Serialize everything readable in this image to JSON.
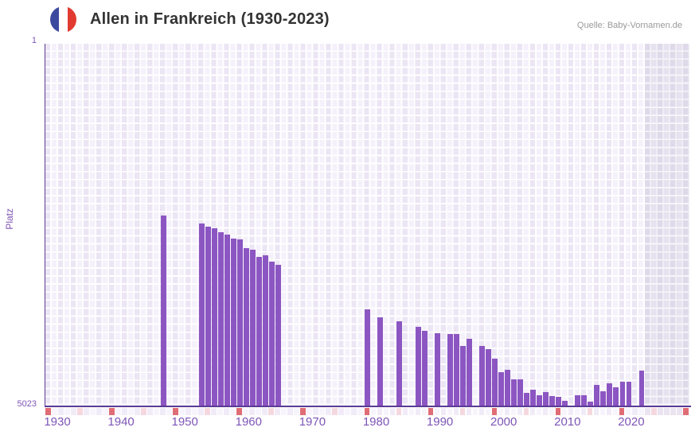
{
  "header": {
    "title": "Allen in Frankreich (1930-2023)",
    "flag_icon": "france-flag-circle-icon",
    "source": "Quelle: Baby-Vornamen.de"
  },
  "colors": {
    "bar": "#8c56c2",
    "axis_line": "#5b3b94",
    "axis_text": "#7d55b6",
    "title_text": "#333333",
    "source_text": "#999999",
    "decade_marker": "#df6d75",
    "half_decade_marker": "#f5d8df",
    "strip_cell": "#f1ebf8",
    "strip_cell_future": "#eae3f0",
    "grid_cell_dark": "#ebe5f4",
    "grid_cell_light": "#f5f1fb",
    "future_band": "#e2deec",
    "flag_blue": "#3b4a9f",
    "flag_white": "#ffffff",
    "flag_red": "#e23a30"
  },
  "chart_data": {
    "type": "bar",
    "title": "Allen in Frankreich (1930-2023)",
    "xlabel": "",
    "ylabel": "Platz",
    "y_axis": {
      "reversed": true,
      "min": 1,
      "max": 5023,
      "top_label": "1",
      "bottom_label": "5023"
    },
    "x_axis": {
      "start": 1930,
      "end": 2030,
      "data_end": 2023,
      "ticks": [
        1930,
        1940,
        1950,
        1960,
        1970,
        1980,
        1990,
        2000,
        2010,
        2020
      ],
      "decade_marker_years": [
        1930,
        1940,
        1950,
        1960,
        1970,
        1980,
        1990,
        2000,
        2010,
        2020,
        2030
      ],
      "half_decade_marker_years": [
        1935,
        1945,
        1955,
        1965,
        1975,
        1985,
        1995,
        2005,
        2015,
        2025
      ]
    },
    "grid": true,
    "legend_position": "none",
    "future_region": [
      2024,
      2030
    ],
    "series": [
      {
        "name": "Platz",
        "points": [
          [
            1948,
            2385
          ],
          [
            1954,
            2490
          ],
          [
            1955,
            2535
          ],
          [
            1956,
            2560
          ],
          [
            1957,
            2615
          ],
          [
            1958,
            2645
          ],
          [
            1959,
            2700
          ],
          [
            1960,
            2715
          ],
          [
            1961,
            2835
          ],
          [
            1962,
            2865
          ],
          [
            1963,
            2955
          ],
          [
            1964,
            2940
          ],
          [
            1965,
            3020
          ],
          [
            1966,
            3065
          ],
          [
            1980,
            3685
          ],
          [
            1982,
            3795
          ],
          [
            1985,
            3850
          ],
          [
            1988,
            3935
          ],
          [
            1989,
            3980
          ],
          [
            1991,
            4015
          ],
          [
            1993,
            4025
          ],
          [
            1994,
            4035
          ],
          [
            1995,
            4190
          ],
          [
            1996,
            4100
          ],
          [
            1998,
            4200
          ],
          [
            1999,
            4235
          ],
          [
            2000,
            4375
          ],
          [
            2001,
            4555
          ],
          [
            2002,
            4530
          ],
          [
            2003,
            4655
          ],
          [
            2004,
            4655
          ],
          [
            2005,
            4850
          ],
          [
            2006,
            4805
          ],
          [
            2007,
            4875
          ],
          [
            2008,
            4840
          ],
          [
            2009,
            4895
          ],
          [
            2010,
            4905
          ],
          [
            2011,
            4960
          ],
          [
            2013,
            4885
          ],
          [
            2014,
            4885
          ],
          [
            2015,
            4970
          ],
          [
            2016,
            4740
          ],
          [
            2017,
            4820
          ],
          [
            2018,
            4710
          ],
          [
            2019,
            4765
          ],
          [
            2020,
            4695
          ],
          [
            2021,
            4695
          ],
          [
            2023,
            4540
          ]
        ]
      }
    ]
  }
}
